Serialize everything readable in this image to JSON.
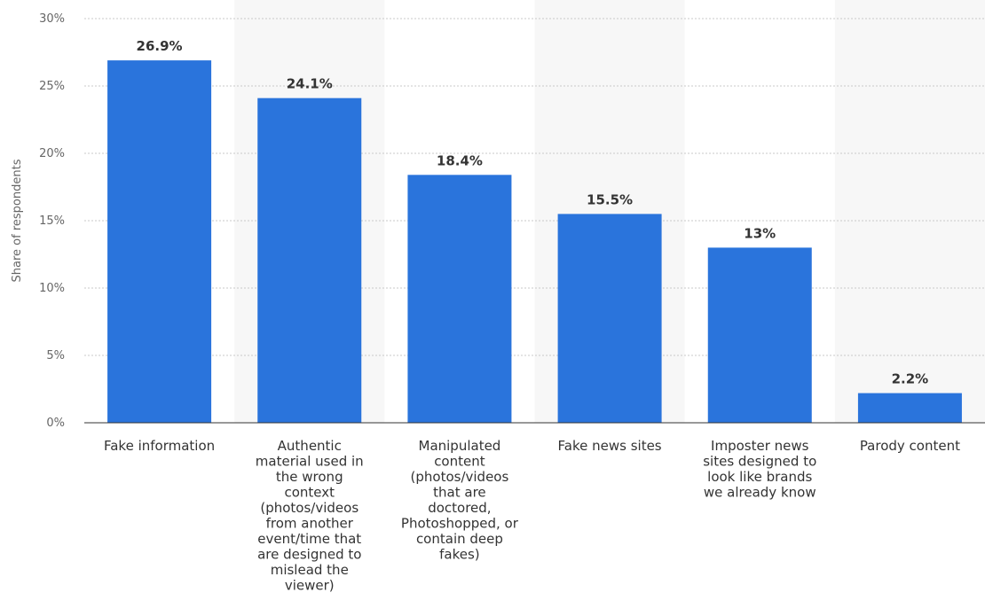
{
  "chart_data": {
    "type": "bar",
    "title": "",
    "xlabel": "",
    "ylabel": "Share of respondents",
    "ylim": [
      0,
      30
    ],
    "yticks": [
      0,
      5,
      10,
      15,
      20,
      25,
      30
    ],
    "ytick_labels": [
      "0%",
      "5%",
      "10%",
      "15%",
      "20%",
      "25%",
      "30%"
    ],
    "grid": true,
    "categories": [
      [
        "Fake information"
      ],
      [
        "Authentic",
        "material used in",
        "the wrong",
        "context",
        "(photos/videos",
        "from another",
        "event/time that",
        "are designed to",
        "mislead the",
        "viewer)"
      ],
      [
        "Manipulated",
        "content",
        "(photos/videos",
        "that are",
        "doctored,",
        "Photoshopped, or",
        "contain deep",
        "fakes)"
      ],
      [
        "Fake news sites"
      ],
      [
        "Imposter news",
        "sites designed to",
        "look like brands",
        "we already know"
      ],
      [
        "Parody content"
      ]
    ],
    "values": [
      26.9,
      24.1,
      18.4,
      15.5,
      13,
      2.2
    ],
    "value_labels": [
      "26.9%",
      "24.1%",
      "18.4%",
      "15.5%",
      "13%",
      "2.2%"
    ],
    "colors": {
      "bar": "#2a74dc",
      "band": "#f7f7f7",
      "grid": "#c8c8c8"
    }
  }
}
